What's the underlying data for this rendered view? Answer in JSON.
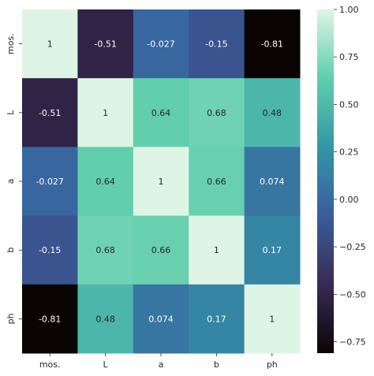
{
  "chart_data": {
    "type": "heatmap",
    "x_labels": [
      "mos.",
      "L",
      "a",
      "b",
      "ph"
    ],
    "y_labels": [
      "mos.",
      "L",
      "a",
      "b",
      "ph"
    ],
    "values": [
      [
        1,
        -0.51,
        -0.027,
        -0.15,
        -0.81
      ],
      [
        -0.51,
        1,
        0.64,
        0.68,
        0.48
      ],
      [
        -0.027,
        0.64,
        1,
        0.66,
        0.074
      ],
      [
        -0.15,
        0.68,
        0.66,
        1,
        0.17
      ],
      [
        -0.81,
        0.48,
        0.074,
        0.17,
        1
      ]
    ],
    "cell_text": [
      [
        "1",
        "-0.51",
        "-0.027",
        "-0.15",
        "-0.81"
      ],
      [
        "-0.51",
        "1",
        "0.64",
        "0.68",
        "0.48"
      ],
      [
        "-0.027",
        "0.64",
        "1",
        "0.66",
        "0.074"
      ],
      [
        "-0.15",
        "0.68",
        "0.66",
        "1",
        "0.17"
      ],
      [
        "-0.81",
        "0.48",
        "0.074",
        "0.17",
        "1"
      ]
    ],
    "colorbar": {
      "range": [
        -0.81,
        1.0
      ],
      "ticks": [
        1.0,
        0.75,
        0.5,
        0.25,
        0.0,
        -0.25,
        -0.5,
        -0.75
      ],
      "tick_labels": [
        "1.00",
        "0.75",
        "0.50",
        "0.25",
        "0.00",
        "−0.25",
        "−0.50",
        "−0.75"
      ],
      "colormap": "mako",
      "colormap_stops": [
        "#0b0405",
        "#382a54",
        "#395d9c",
        "#3496a8",
        "#60ceac",
        "#def5e5"
      ]
    },
    "title": "",
    "xlabel": "",
    "ylabel": ""
  }
}
